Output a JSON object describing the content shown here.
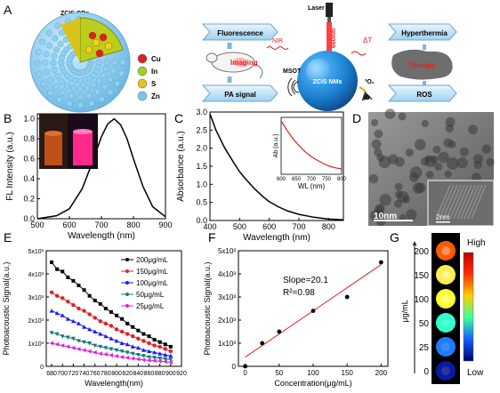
{
  "panels": {
    "A": {
      "letter": "A",
      "qd_title": "ZCIS QDs",
      "legend": [
        {
          "label": "Cu",
          "color": "#e02020"
        },
        {
          "label": "In",
          "color": "#9bd21e"
        },
        {
          "label": "S",
          "color": "#e8c21a"
        },
        {
          "label": "Zn",
          "color": "#7fc4ea"
        }
      ],
      "laser": "Laser",
      "wavelength": "660nm",
      "fluorescence": "Fluorescence",
      "pa_signal": "PA signal",
      "imaging": "Imaging",
      "nir": "NIR",
      "delta_t": "ΔT",
      "msot": "MSOT",
      "nms": "ZCIS NMs",
      "o2_triplet": "³O₂",
      "o2_singlet": "¹O₂",
      "hyperthermia": "Hyperthermia",
      "therapy": "Therapy",
      "ros": "ROS"
    },
    "B": {
      "letter": "B"
    },
    "C": {
      "letter": "C"
    },
    "D": {
      "letter": "D",
      "scale_main": "10nm",
      "scale_inset": "2nm"
    },
    "E": {
      "letter": "E"
    },
    "F": {
      "letter": "F",
      "slope": "Slope=20.1",
      "r2": "R²=0.98"
    },
    "G": {
      "letter": "G",
      "ylabel": "μg/mL",
      "ticks": [
        "200",
        "150",
        "100",
        "50",
        "25",
        "0"
      ],
      "dot_colors": [
        "#ff5a00",
        "#ffee50",
        "#ffff30",
        "#30ffd0",
        "#1e7cff",
        "#0a1aa0"
      ],
      "high": "High",
      "low": "Low"
    }
  },
  "chart_data": [
    {
      "panel": "B",
      "type": "line",
      "xlabel": "Wavelength (nm)",
      "ylabel": "FL Intensity (a.u.)",
      "xlim": [
        500,
        900
      ],
      "ylim": [
        0,
        1.05
      ],
      "xticks": [
        500,
        600,
        700,
        800,
        900
      ],
      "yticks": [
        0.0,
        0.2,
        0.4,
        0.6,
        0.8,
        1.0
      ],
      "series": [
        {
          "color": "#000000",
          "x": [
            500,
            560,
            600,
            640,
            670,
            700,
            720,
            740,
            760,
            780,
            800,
            830,
            860,
            900
          ],
          "y": [
            0.0,
            0.03,
            0.1,
            0.3,
            0.55,
            0.82,
            0.95,
            1.0,
            0.94,
            0.8,
            0.6,
            0.32,
            0.12,
            0.02
          ]
        }
      ]
    },
    {
      "panel": "C",
      "type": "line",
      "xlabel": "Wavelength (nm)",
      "ylabel": "Absorbance (a.u.)",
      "xlim": [
        400,
        850
      ],
      "ylim": [
        0,
        3.0
      ],
      "xticks": [
        400,
        500,
        600,
        700,
        800
      ],
      "yticks": [
        0.0,
        0.5,
        1.0,
        1.5,
        2.0,
        2.5,
        3.0
      ],
      "series": [
        {
          "color": "#000000",
          "x": [
            400,
            420,
            450,
            480,
            500,
            520,
            550,
            580,
            600,
            630,
            660,
            700,
            750,
            800,
            850
          ],
          "y": [
            2.95,
            2.5,
            2.0,
            1.6,
            1.35,
            1.15,
            0.88,
            0.65,
            0.52,
            0.38,
            0.27,
            0.17,
            0.09,
            0.04,
            0.02
          ]
        }
      ],
      "inset": {
        "xlabel": "WL (nm)",
        "ylabel": "Ab (a.u.)",
        "xlim": [
          600,
          800
        ],
        "xticks": [
          600,
          650,
          700,
          750,
          800
        ],
        "series": [
          {
            "color": "#e02020",
            "x": [
              600,
              620,
              640,
              660,
              680,
              700,
              720,
              740,
              760,
              780,
              800
            ],
            "y": [
              1.0,
              0.82,
              0.66,
              0.53,
              0.42,
              0.33,
              0.26,
              0.2,
              0.15,
              0.12,
              0.1
            ]
          }
        ]
      }
    },
    {
      "panel": "E",
      "type": "line",
      "xlabel": "Wavelength(nm)",
      "ylabel": "Photoacoustic Signal(a.u.)",
      "xlim": [
        670,
        920
      ],
      "ylim": [
        0,
        5000
      ],
      "xticks": [
        680,
        700,
        720,
        740,
        760,
        780,
        800,
        820,
        840,
        860,
        880,
        900,
        920
      ],
      "yticks": [
        0,
        1000,
        2000,
        3000,
        4000,
        5000
      ],
      "ytick_labels": [
        "0",
        "1x10³",
        "2x10³",
        "3x10³",
        "4x10³",
        "5x10³"
      ],
      "legend_pos": "top-right",
      "x": [
        680,
        690,
        700,
        710,
        720,
        730,
        740,
        750,
        760,
        770,
        780,
        790,
        800,
        810,
        820,
        830,
        840,
        850,
        860,
        870,
        880,
        890,
        900
      ],
      "series": [
        {
          "name": "200μg/mL",
          "color": "#000000",
          "marker": "square",
          "values": [
            4500,
            4200,
            4100,
            3850,
            3700,
            3500,
            3300,
            3050,
            2850,
            2700,
            2500,
            2350,
            2200,
            2050,
            1850,
            1700,
            1550,
            1400,
            1300,
            1150,
            1050,
            950,
            850
          ]
        },
        {
          "name": "150μg/mL",
          "color": "#e02020",
          "marker": "circle",
          "values": [
            3200,
            3050,
            2950,
            2800,
            2650,
            2500,
            2400,
            2250,
            2100,
            1950,
            1850,
            1750,
            1600,
            1500,
            1400,
            1300,
            1200,
            1100,
            1000,
            900,
            850,
            750,
            650
          ]
        },
        {
          "name": "100μg/mL",
          "color": "#1a1aff",
          "marker": "triangle",
          "values": [
            2400,
            2300,
            2200,
            2050,
            1950,
            1850,
            1700,
            1600,
            1500,
            1400,
            1300,
            1200,
            1100,
            1000,
            950,
            850,
            800,
            700,
            650,
            600,
            550,
            500,
            450
          ]
        },
        {
          "name": "50μg/mL",
          "color": "#1a7a7a",
          "marker": "triangle-down",
          "values": [
            1450,
            1400,
            1300,
            1250,
            1200,
            1100,
            1050,
            1000,
            900,
            850,
            800,
            750,
            700,
            650,
            600,
            550,
            500,
            450,
            400,
            380,
            350,
            320,
            300
          ]
        },
        {
          "name": "25μg/mL",
          "color": "#e020e0",
          "marker": "triangle-left",
          "values": [
            1000,
            950,
            900,
            850,
            800,
            750,
            700,
            650,
            600,
            550,
            520,
            480,
            440,
            400,
            370,
            340,
            310,
            280,
            260,
            240,
            220,
            200,
            180
          ]
        }
      ]
    },
    {
      "panel": "F",
      "type": "scatter",
      "xlabel": "Concentration(μg/mL)",
      "ylabel": "Photoacoustic Signal(a.u.)",
      "xlim": [
        -10,
        210
      ],
      "ylim": [
        0,
        5000
      ],
      "xticks": [
        0,
        50,
        100,
        150,
        200
      ],
      "yticks": [
        0,
        1000,
        2000,
        3000,
        4000,
        5000
      ],
      "ytick_labels": [
        "0",
        "1x10³",
        "2x10³",
        "3x10³",
        "4x10³",
        "5x10³"
      ],
      "points": {
        "x": [
          0,
          25,
          50,
          100,
          150,
          200
        ],
        "y": [
          0,
          1000,
          1500,
          2400,
          3000,
          4500
        ]
      },
      "fit": {
        "color": "#e02020",
        "x": [
          0,
          200
        ],
        "y": [
          400,
          4400
        ]
      }
    }
  ]
}
